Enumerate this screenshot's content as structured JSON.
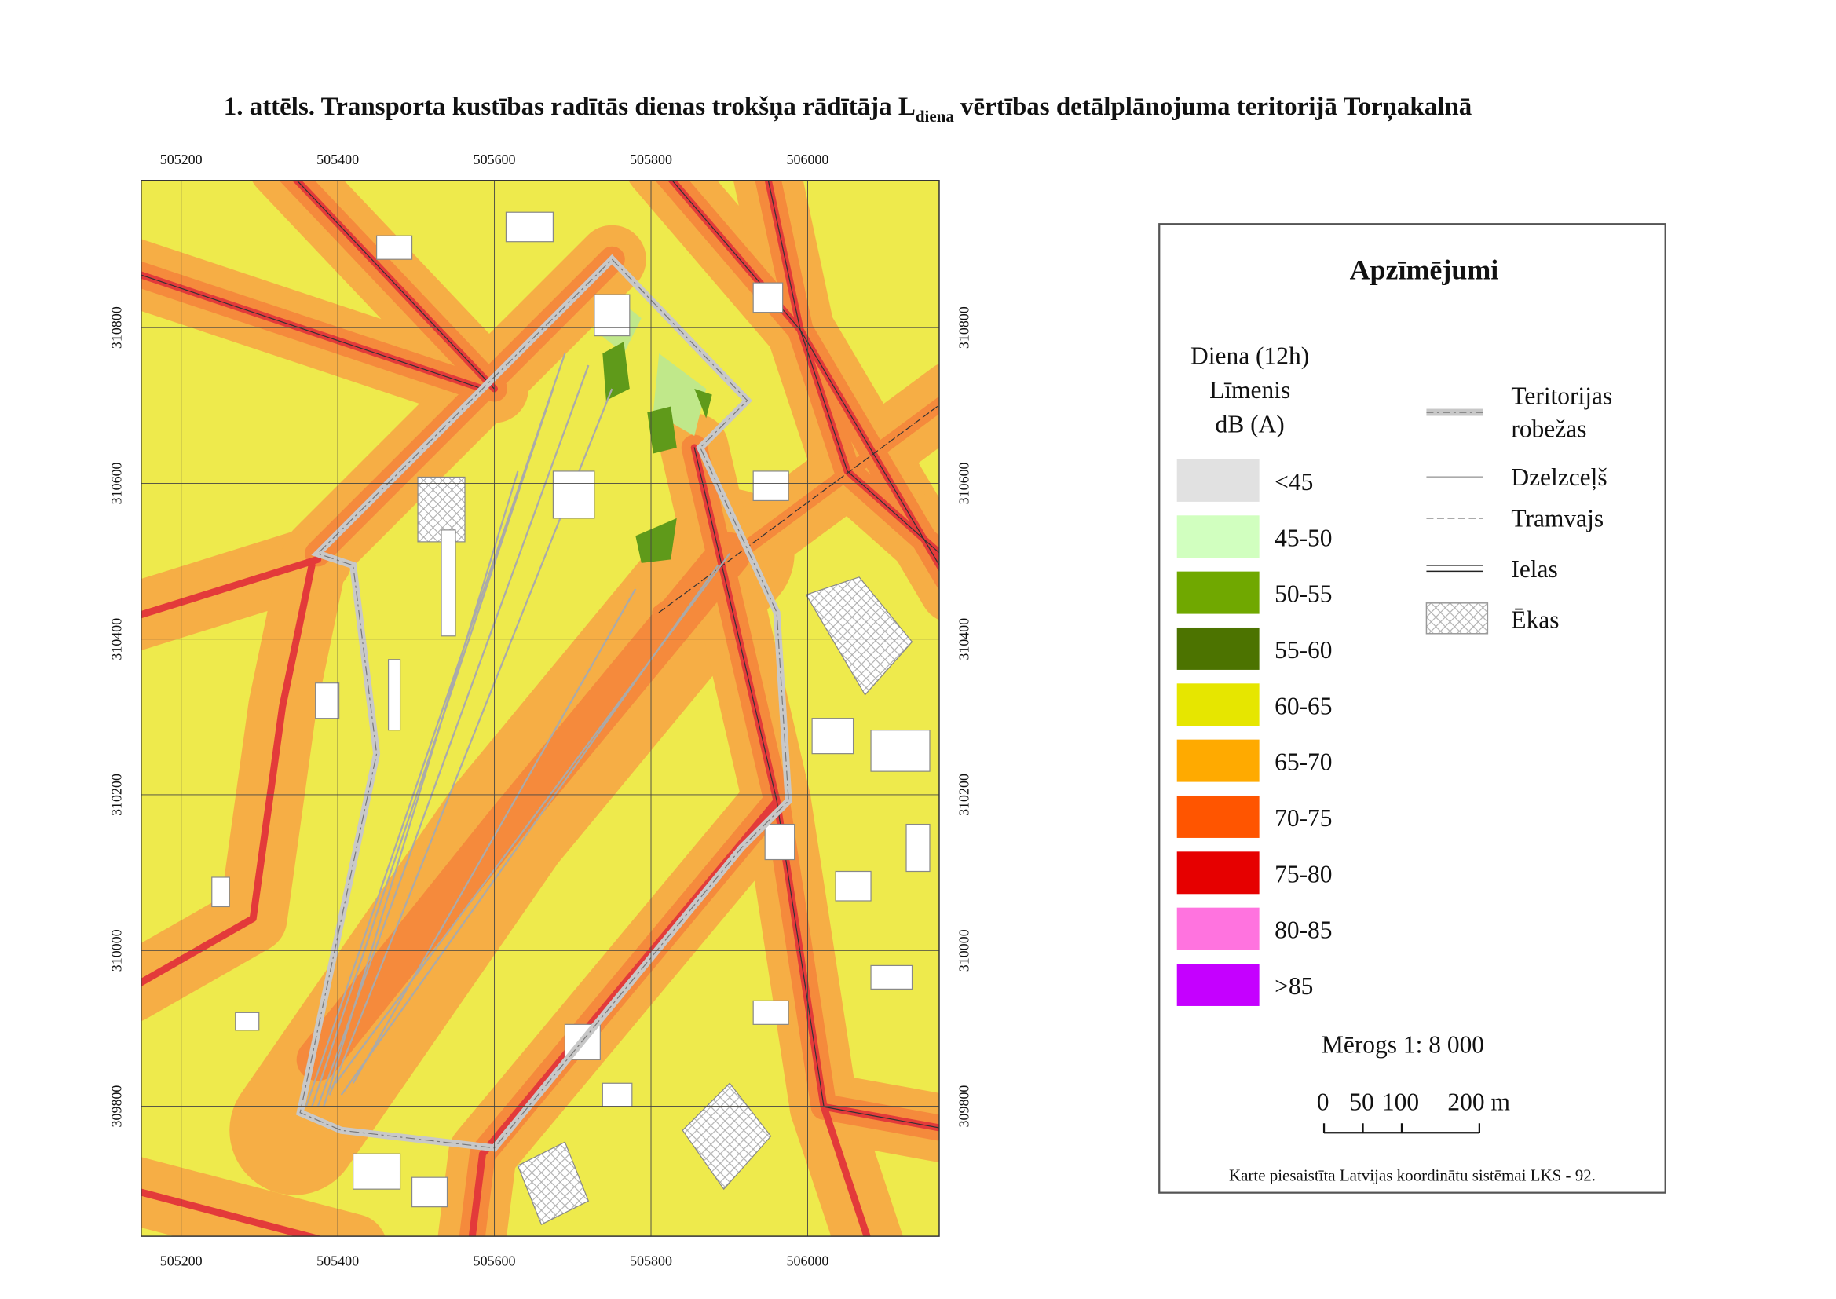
{
  "title": {
    "text": "1. attēls. Transporta kustības radītās dienas trokšņa rādītāja L",
    "subscript": "diena",
    "text_after": " vērtības detālplānojuma teritorijā Torņakalnā"
  },
  "map": {
    "xlim": [
      505149,
      506168
    ],
    "ylim": [
      309633,
      310989
    ],
    "xticks": [
      505200,
      505400,
      505600,
      505800,
      506000
    ],
    "yticks": [
      309800,
      310000,
      310200,
      310400,
      310600,
      310800
    ]
  },
  "legend": {
    "title": "Apzīmējumi",
    "header": [
      "Diena (12h)",
      "Līmenis",
      "dB (A)"
    ],
    "classes": [
      {
        "label": "<45",
        "color": "#e1e1e1"
      },
      {
        "label": "45-50",
        "color": "#d1ffbf"
      },
      {
        "label": "50-55",
        "color": "#70a800"
      },
      {
        "label": "55-60",
        "color": "#4c7300"
      },
      {
        "label": "60-65",
        "color": "#e6e600"
      },
      {
        "label": "65-70",
        "color": "#ffaa00"
      },
      {
        "label": "70-75",
        "color": "#ff5500"
      },
      {
        "label": "75-80",
        "color": "#e60000"
      },
      {
        "label": "80-85",
        "color": "#ff73df"
      },
      {
        "label": ">85",
        "color": "#c500ff"
      }
    ],
    "symbols": {
      "boundary": [
        "Teritorijas",
        "robežas"
      ],
      "railway": "Dzelzceļš",
      "tram": "Tramvajs",
      "streets": "Ielas",
      "buildings": "Ēkas"
    },
    "scale_text": "Mērogs 1: 8 000",
    "scale_labels": [
      "0",
      "50",
      "100",
      "200 m"
    ],
    "footnote": "Karte piesaistīta Latvijas koordinātu sistēmai LKS - 92."
  }
}
